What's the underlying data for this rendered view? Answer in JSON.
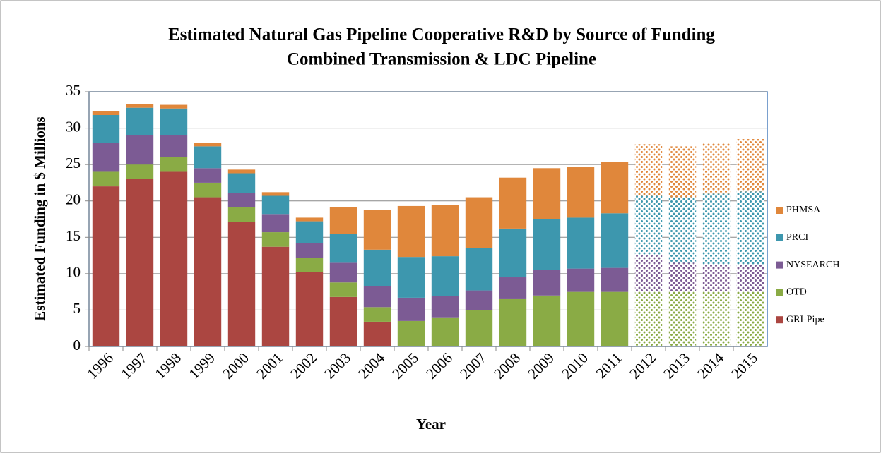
{
  "chart_data": {
    "type": "stacked_bar",
    "title": "Estimated Natural Gas Pipeline Cooperative R&D by Source of Funding",
    "subtitle": "Combined Transmission & LDC Pipeline",
    "x_label": "Year",
    "y_label": "Estimated Funding in $ Millions",
    "categories": [
      "1996",
      "1997",
      "1998",
      "1999",
      "2000",
      "2001",
      "2002",
      "2003",
      "2004",
      "2005",
      "2006",
      "2007",
      "2008",
      "2009",
      "2010",
      "2011",
      "2012",
      "2013",
      "2014",
      "2015"
    ],
    "dotted": [
      false,
      false,
      false,
      false,
      false,
      false,
      false,
      false,
      false,
      false,
      false,
      false,
      false,
      false,
      false,
      false,
      true,
      true,
      true,
      true
    ],
    "series": [
      {
        "name": "GRI-Pipe",
        "color": "#ab4641",
        "values": [
          22,
          23,
          24,
          20.5,
          17.1,
          13.7,
          10.2,
          6.8,
          3.4,
          0,
          0,
          0,
          0,
          0,
          0,
          0,
          0,
          0,
          0,
          0
        ]
      },
      {
        "name": "OTD",
        "color": "#8aab45",
        "values": [
          2,
          2,
          2,
          2,
          2,
          2,
          2,
          2,
          2,
          3.5,
          4,
          5,
          6.5,
          7,
          7.5,
          7.5,
          7.5,
          7.5,
          7.5,
          7.5
        ]
      },
      {
        "name": "NYSEARCH",
        "color": "#7c5b94",
        "values": [
          4,
          4,
          3,
          2,
          2,
          2.5,
          2,
          2.7,
          2.9,
          3.2,
          2.9,
          2.7,
          3,
          3.5,
          3.2,
          3.3,
          5,
          4,
          3.8,
          3.7
        ]
      },
      {
        "name": "PRCI",
        "color": "#3d97ae",
        "values": [
          3.8,
          3.8,
          3.7,
          3,
          2.7,
          2.5,
          3,
          4,
          5,
          5.6,
          5.5,
          5.8,
          6.7,
          7,
          7,
          7.5,
          8.2,
          9,
          9.7,
          10.1
        ]
      },
      {
        "name": "PHMSA",
        "color": "#e0873b",
        "values": [
          0.5,
          0.5,
          0.5,
          0.5,
          0.5,
          0.5,
          0.5,
          3.6,
          5.5,
          7,
          7,
          7,
          7,
          7,
          7,
          7.1,
          7.1,
          7,
          7,
          7.2
        ]
      }
    ],
    "ylim": [
      0,
      35
    ],
    "yticks": [
      0,
      5,
      10,
      15,
      20,
      25,
      30,
      35
    ],
    "grid": true,
    "legend": "right"
  }
}
